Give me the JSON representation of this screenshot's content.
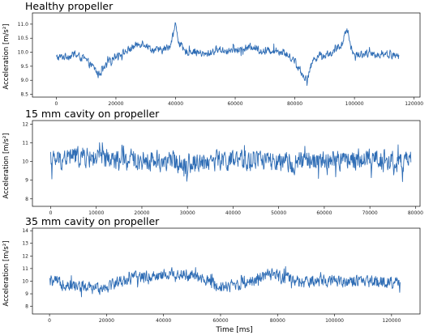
{
  "chart_data": [
    {
      "type": "line",
      "title": "Healthy propeller",
      "ylabel": "Acceleration [m/s²]",
      "xlabel": "",
      "xlim": [
        -8000,
        122000
      ],
      "ylim": [
        8.4,
        11.4
      ],
      "xticks": [
        0,
        20000,
        40000,
        60000,
        80000,
        100000,
        120000
      ],
      "yticks": [
        8.5,
        9.0,
        9.5,
        10.0,
        10.5,
        11.0
      ],
      "x_end": 115000,
      "grid": false,
      "series": [
        {
          "color": "#2f6db5",
          "x": [
            0,
            3000,
            6000,
            9000,
            12000,
            13000,
            14000,
            16000,
            18000,
            20000,
            23000,
            26000,
            29000,
            32000,
            35000,
            38000,
            40000,
            41000,
            43000,
            46000,
            50000,
            54000,
            58000,
            62000,
            66000,
            70000,
            73000,
            76000,
            79000,
            80000,
            82000,
            84000,
            86000,
            88000,
            90000,
            93000,
            96000,
            97000,
            98000,
            99000,
            100000,
            103000,
            106000,
            110000,
            115000
          ],
          "y": [
            9.8,
            9.85,
            9.9,
            9.8,
            9.5,
            9.4,
            9.2,
            9.4,
            9.7,
            9.9,
            10.0,
            10.2,
            10.35,
            10.1,
            10.05,
            10.2,
            11.0,
            10.4,
            10.0,
            10.05,
            9.9,
            10.1,
            10.05,
            10.1,
            10.2,
            10.0,
            10.1,
            10.0,
            9.8,
            9.7,
            9.3,
            9.0,
            9.7,
            9.9,
            9.9,
            10.0,
            10.3,
            10.9,
            10.6,
            10.1,
            9.9,
            9.95,
            9.9,
            9.95,
            9.85
          ]
        }
      ]
    },
    {
      "type": "line",
      "title": "15 mm cavity on propeller",
      "ylabel": "Acceleration [m/s²]",
      "xlabel": "",
      "xlim": [
        -4000,
        81000
      ],
      "ylim": [
        7.6,
        12.2
      ],
      "xticks": [
        0,
        10000,
        20000,
        30000,
        40000,
        50000,
        60000,
        70000,
        80000
      ],
      "yticks": [
        8,
        9,
        10,
        11,
        12
      ],
      "x_end": 79000,
      "grid": false,
      "series": [
        {
          "color": "#2f6db5",
          "x": [
            0,
            5000,
            10000,
            15000,
            20000,
            25000,
            28000,
            30000,
            33000,
            37000,
            40000,
            43000,
            46000,
            48000,
            50000,
            52000,
            55000,
            60000,
            65000,
            70000,
            73000,
            75000,
            77000,
            79000
          ],
          "y": [
            10.0,
            10.3,
            10.2,
            10.0,
            10.1,
            10.0,
            10.0,
            9.9,
            10.0,
            10.1,
            10.0,
            10.0,
            10.2,
            10.0,
            9.8,
            9.9,
            10.0,
            10.0,
            10.1,
            10.2,
            10.1,
            10.0,
            9.9,
            10.0
          ]
        }
      ]
    },
    {
      "type": "line",
      "title": "35 mm cavity on propeller",
      "ylabel": "Acceleration [m/s²]",
      "xlabel": "Time [ms]",
      "xlim": [
        -6000,
        130000
      ],
      "ylim": [
        7.4,
        14.2
      ],
      "xticks": [
        0,
        20000,
        40000,
        60000,
        80000,
        100000,
        120000
      ],
      "yticks": [
        8,
        9,
        10,
        11,
        12,
        13,
        14
      ],
      "x_end": 123000,
      "grid": false,
      "series": [
        {
          "color": "#2f6db5",
          "x": [
            0,
            5000,
            10000,
            15000,
            20000,
            25000,
            30000,
            35000,
            40000,
            45000,
            50000,
            55000,
            60000,
            65000,
            70000,
            75000,
            80000,
            85000,
            90000,
            95000,
            100000,
            105000,
            110000,
            115000,
            120000,
            123000
          ],
          "y": [
            10.0,
            9.8,
            9.6,
            9.4,
            9.6,
            10.0,
            10.3,
            10.4,
            10.5,
            10.6,
            10.4,
            10.0,
            9.6,
            9.7,
            10.0,
            10.4,
            10.5,
            10.0,
            9.9,
            10.0,
            10.1,
            10.0,
            9.9,
            10.0,
            9.9,
            9.8
          ]
        }
      ]
    }
  ]
}
